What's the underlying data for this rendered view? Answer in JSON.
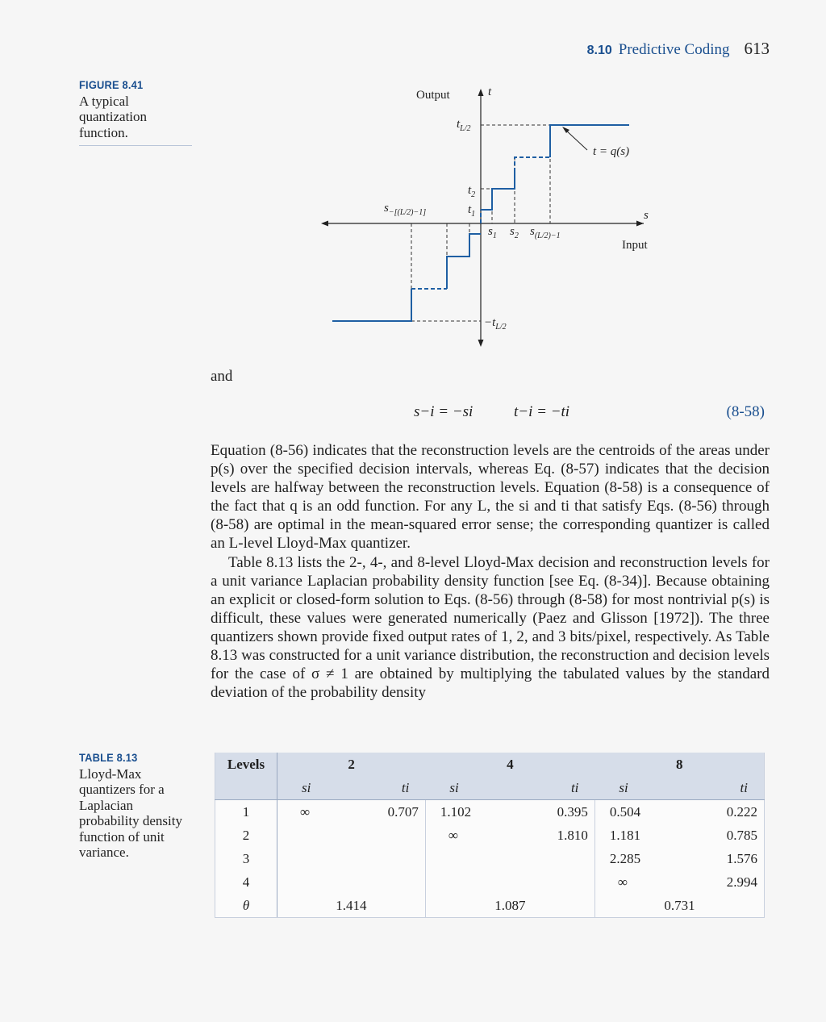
{
  "header": {
    "section": "8.10",
    "title": "Predictive Coding",
    "page": "613"
  },
  "figure": {
    "label": "FIGURE 8.41",
    "caption": "A typical quantization function.",
    "labels": {
      "output": "Output",
      "t_axis": "t",
      "input": "Input",
      "s_axis": "s",
      "tL2": "t",
      "tL2_sub": "L/2",
      "t2": "t",
      "t2_sub": "2",
      "t1": "t",
      "t1_sub": "1",
      "neg_tL2": "−t",
      "neg_tL2_sub": "L/2",
      "s1": "s",
      "s1_sub": "1",
      "s2": "s",
      "s2_sub": "2",
      "sL2m1": "s",
      "sL2m1_sub": "(L/2)−1",
      "sneg": "s",
      "sneg_sub": "−[(L/2)−1]",
      "func": "t = q(s)"
    }
  },
  "body": {
    "and": "and",
    "equation": {
      "left": "s−i = −si",
      "right": "t−i = −ti",
      "number": "(8-58)"
    },
    "para1": "Equation (8-56) indicates that the reconstruction levels are the centroids of the areas under p(s) over the specified decision intervals, whereas Eq. (8-57) indicates that the decision levels are halfway between the reconstruction levels. Equation (8-58) is a consequence of the fact that q is an odd function. For any L, the si and ti that satisfy Eqs. (8-56) through (8-58) are optimal in the mean-squared error sense; the corresponding quantizer is called an L-level Lloyd-Max quantizer.",
    "para2": "Table 8.13 lists the 2-, 4-, and 8-level Lloyd-Max decision and reconstruction levels for a unit variance Laplacian probability density function [see Eq. (8-34)]. Because obtaining an explicit or closed-form solution to Eqs. (8-56) through (8-58) for most nontrivial p(s) is difficult, these values were generated numerically (Paez and Glisson [1972]). The three quantizers shown provide fixed output rates of 1, 2, and 3 bits/pixel, respectively. As Table 8.13 was constructed for a unit variance distribution, the reconstruction and decision levels for the case of σ ≠ 1 are obtained by multiplying the tabulated values by the standard deviation of the probability density"
  },
  "table": {
    "label": "TABLE 8.13",
    "caption": "Lloyd-Max quantizers for a Laplacian probability density function of unit variance.",
    "header": {
      "levels": "Levels",
      "groups": [
        "2",
        "4",
        "8"
      ],
      "s": "si",
      "t": "ti"
    },
    "rows": [
      {
        "level": "1",
        "s2": "∞",
        "t2": "0.707",
        "s4": "1.102",
        "t4": "0.395",
        "s8": "0.504",
        "t8": "0.222"
      },
      {
        "level": "2",
        "s2": "",
        "t2": "",
        "s4": "∞",
        "t4": "1.810",
        "s8": "1.181",
        "t8": "0.785"
      },
      {
        "level": "3",
        "s2": "",
        "t2": "",
        "s4": "",
        "t4": "",
        "s8": "2.285",
        "t8": "1.576"
      },
      {
        "level": "4",
        "s2": "",
        "t2": "",
        "s4": "",
        "t4": "",
        "s8": "∞",
        "t8": "2.994"
      }
    ],
    "theta": {
      "label": "θ",
      "v2": "1.414",
      "v4": "1.087",
      "v8": "0.731"
    }
  }
}
